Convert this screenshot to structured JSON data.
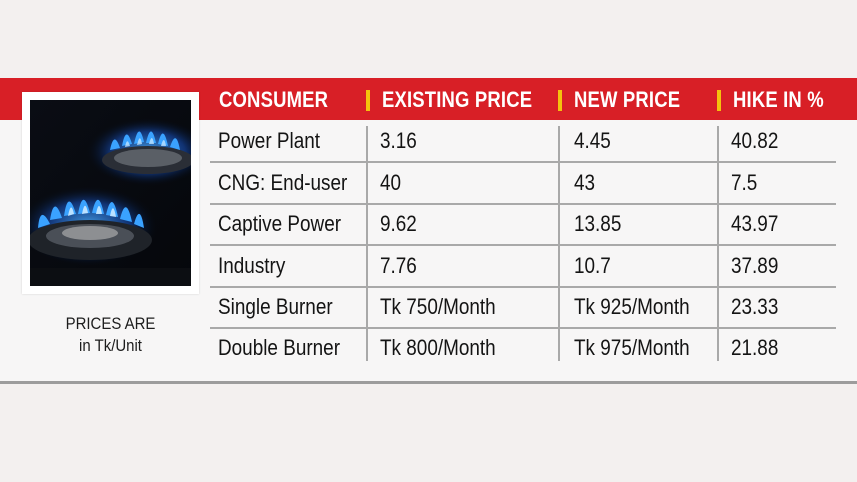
{
  "caption": {
    "line1": "PRICES ARE",
    "line2": "in Tk/Unit"
  },
  "photo": {
    "icon": "gas-stove-flame-photo"
  },
  "colors": {
    "header_bar": "#d81f26",
    "header_text": "#ffffff",
    "header_divider": "#f4c20d",
    "row_rule": "#a9a9a9",
    "body_text": "#141414"
  },
  "chart_data": {
    "type": "table",
    "columns": [
      "CONSUMER",
      "EXISTING PRICE",
      "NEW PRICE",
      "HIKE IN %"
    ],
    "rows": [
      [
        "Power Plant",
        "3.16",
        "4.45",
        "40.82"
      ],
      [
        "CNG: End-user",
        "40",
        "43",
        "7.5"
      ],
      [
        "Captive Power",
        "9.62",
        "13.85",
        "43.97"
      ],
      [
        "Industry",
        "7.76",
        "10.7",
        "37.89"
      ],
      [
        "Single Burner",
        "Tk 750/Month",
        "Tk 925/Month",
        "23.33"
      ],
      [
        "Double Burner",
        "Tk 800/Month",
        "Tk 975/Month",
        "21.88"
      ]
    ]
  }
}
